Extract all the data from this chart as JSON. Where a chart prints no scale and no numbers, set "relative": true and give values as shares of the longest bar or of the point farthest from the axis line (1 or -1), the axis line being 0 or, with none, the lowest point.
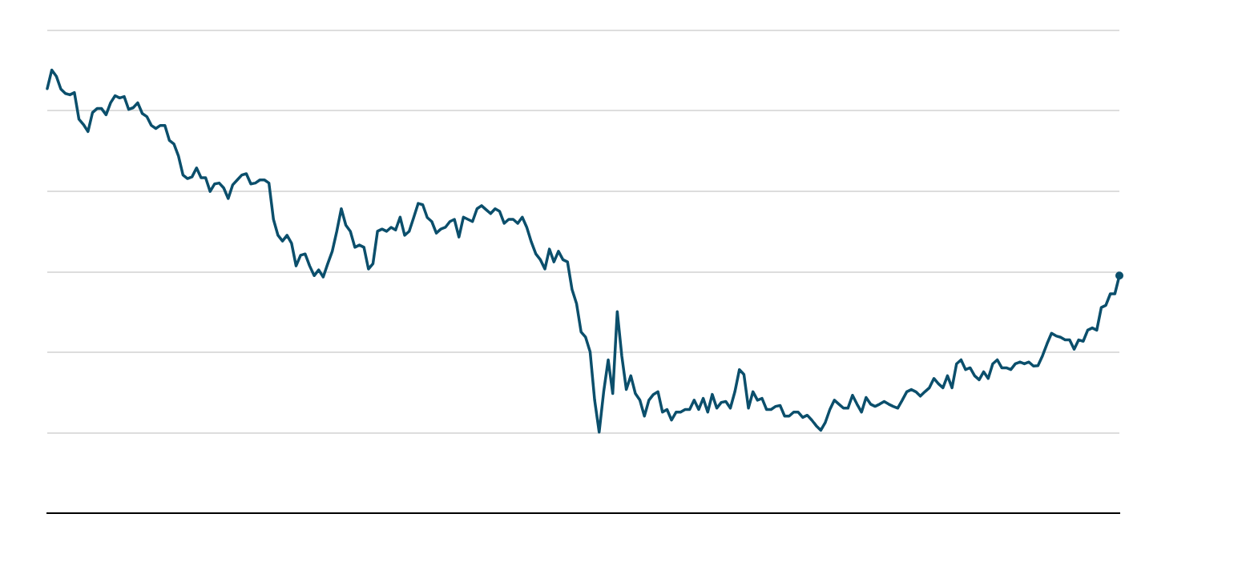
{
  "chart_data": {
    "type": "line",
    "relative": true,
    "grid": "y",
    "legend": false,
    "line_style": "solid",
    "categories": [
      null,
      null,
      null,
      null,
      null,
      null,
      null,
      null,
      null,
      null,
      null,
      null,
      null,
      null,
      null,
      null,
      null,
      null,
      null,
      null,
      null,
      null,
      null,
      null,
      null,
      null,
      null,
      null,
      null,
      null,
      null,
      null,
      null,
      null,
      null,
      null,
      null,
      null,
      null,
      null,
      null,
      null,
      null,
      null,
      null,
      null,
      null,
      null,
      null,
      null,
      null,
      null,
      null,
      null,
      null,
      null,
      null,
      null,
      null,
      null,
      null,
      null,
      null,
      null,
      null,
      null,
      null,
      null,
      null,
      null,
      null,
      null,
      null,
      null,
      null,
      null,
      null,
      null,
      null,
      null,
      null,
      null,
      null,
      null,
      null,
      null,
      null,
      null,
      null,
      null,
      null,
      null,
      null,
      null,
      null,
      null,
      null,
      null,
      null,
      null,
      null,
      null,
      null,
      null,
      null,
      null,
      null,
      null,
      null,
      null,
      null,
      null,
      null,
      null,
      null,
      null,
      null,
      null,
      null,
      null,
      null,
      null,
      null,
      null,
      null,
      null,
      null,
      null,
      null,
      null,
      null,
      null,
      null,
      null,
      null,
      null,
      null,
      null,
      null,
      null,
      null,
      null,
      null,
      null,
      null,
      null,
      null,
      null,
      null,
      null,
      null,
      null,
      null,
      null,
      null,
      null,
      null,
      null,
      null,
      null,
      null,
      null,
      null,
      null,
      null,
      null,
      null,
      null,
      null,
      null,
      null,
      null,
      null,
      null,
      null,
      null,
      null,
      null,
      null,
      null,
      null,
      null,
      null,
      null,
      null,
      null,
      null,
      null,
      null,
      null,
      null,
      null,
      null,
      null,
      null,
      null,
      null,
      null,
      null,
      null,
      null,
      null,
      null,
      null,
      null,
      null,
      null,
      null,
      null,
      null,
      null,
      null,
      null,
      null,
      null,
      null,
      null,
      null,
      null,
      null,
      null,
      null,
      null,
      null,
      null,
      null,
      null,
      null,
      null,
      null,
      null,
      null,
      null,
      null,
      null,
      null,
      null,
      null
    ],
    "series": [
      {
        "color": "#0b4f6c",
        "values": [
          0.958,
          1.0,
          0.986,
          0.957,
          0.947,
          0.944,
          0.949,
          0.889,
          0.877,
          0.861,
          0.904,
          0.913,
          0.913,
          0.899,
          0.926,
          0.942,
          0.937,
          0.94,
          0.911,
          0.915,
          0.926,
          0.902,
          0.895,
          0.875,
          0.868,
          0.875,
          0.875,
          0.841,
          0.833,
          0.806,
          0.763,
          0.755,
          0.759,
          0.779,
          0.757,
          0.757,
          0.726,
          0.743,
          0.745,
          0.734,
          0.71,
          0.741,
          0.752,
          0.763,
          0.766,
          0.743,
          0.745,
          0.752,
          0.752,
          0.745,
          0.663,
          0.627,
          0.614,
          0.627,
          0.609,
          0.558,
          0.582,
          0.585,
          0.558,
          0.536,
          0.549,
          0.533,
          0.563,
          0.591,
          0.636,
          0.687,
          0.65,
          0.636,
          0.6,
          0.605,
          0.6,
          0.551,
          0.563,
          0.636,
          0.641,
          0.636,
          0.645,
          0.639,
          0.668,
          0.627,
          0.636,
          0.667,
          0.699,
          0.696,
          0.667,
          0.658,
          0.632,
          0.641,
          0.645,
          0.658,
          0.663,
          0.623,
          0.668,
          0.663,
          0.658,
          0.687,
          0.694,
          0.685,
          0.676,
          0.687,
          0.681,
          0.654,
          0.663,
          0.663,
          0.654,
          0.668,
          0.645,
          0.612,
          0.585,
          0.572,
          0.551,
          0.596,
          0.567,
          0.591,
          0.572,
          0.567,
          0.505,
          0.473,
          0.409,
          0.397,
          0.364,
          0.255,
          0.183,
          0.274,
          0.346,
          0.27,
          0.455,
          0.355,
          0.279,
          0.31,
          0.27,
          0.255,
          0.219,
          0.255,
          0.268,
          0.274,
          0.228,
          0.234,
          0.21,
          0.228,
          0.228,
          0.234,
          0.234,
          0.255,
          0.234,
          0.259,
          0.228,
          0.268,
          0.237,
          0.25,
          0.252,
          0.237,
          0.274,
          0.324,
          0.313,
          0.237,
          0.274,
          0.255,
          0.259,
          0.234,
          0.234,
          0.241,
          0.243,
          0.219,
          0.219,
          0.228,
          0.228,
          0.216,
          0.221,
          0.21,
          0.197,
          0.187,
          0.205,
          0.234,
          0.255,
          0.246,
          0.237,
          0.237,
          0.266,
          0.246,
          0.228,
          0.261,
          0.246,
          0.241,
          0.246,
          0.252,
          0.246,
          0.241,
          0.237,
          0.255,
          0.274,
          0.279,
          0.274,
          0.264,
          0.274,
          0.283,
          0.304,
          0.292,
          0.283,
          0.31,
          0.283,
          0.337,
          0.346,
          0.324,
          0.328,
          0.31,
          0.301,
          0.319,
          0.304,
          0.337,
          0.346,
          0.328,
          0.328,
          0.324,
          0.337,
          0.341,
          0.337,
          0.341,
          0.332,
          0.333,
          0.355,
          0.382,
          0.406,
          0.4,
          0.397,
          0.391,
          0.391,
          0.37,
          0.391,
          0.388,
          0.413,
          0.418,
          0.413,
          0.464,
          0.469,
          0.495,
          0.495,
          0.536
        ]
      }
    ]
  }
}
